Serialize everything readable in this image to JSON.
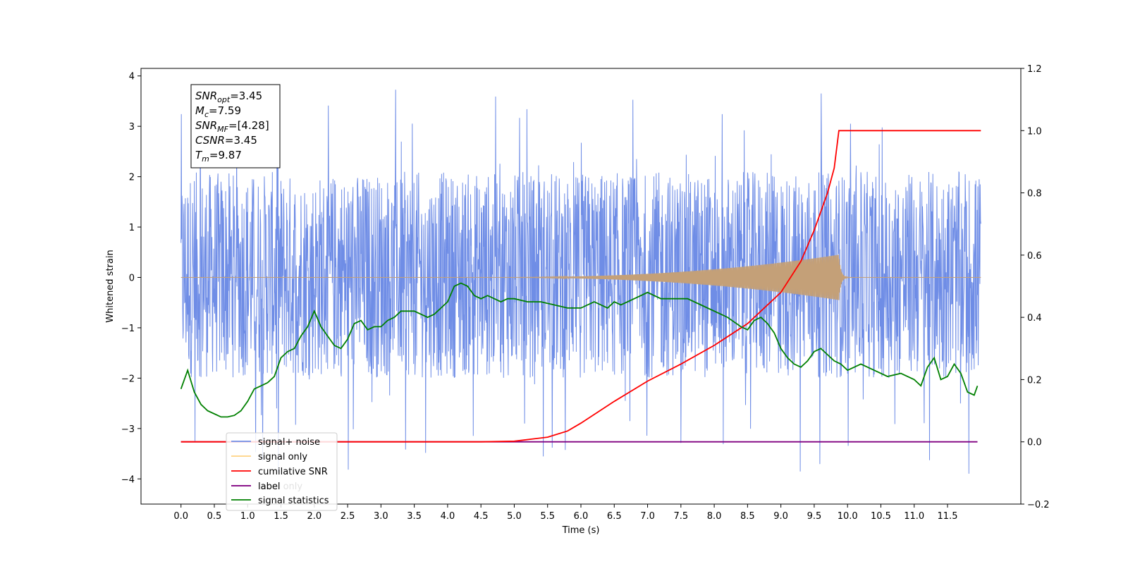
{
  "chart_data": {
    "type": "line",
    "xlabel": "Time (s)",
    "ylabel": "Whitened strain",
    "xlim": [
      -0.6,
      12.6
    ],
    "ylim": [
      -4.5,
      4.15
    ],
    "y2lim": [
      -0.2,
      1.2
    ],
    "x_ticks": [
      "0.0",
      "0.5",
      "1.0",
      "1.5",
      "2.0",
      "2.5",
      "3.0",
      "3.5",
      "4.0",
      "4.5",
      "5.0",
      "5.5",
      "6.0",
      "6.5",
      "7.0",
      "7.5",
      "8.0",
      "8.5",
      "9.0",
      "9.5",
      "10.0",
      "10.5",
      "11.0",
      "11.5"
    ],
    "y_ticks": [
      "4",
      "3",
      "2",
      "1",
      "0",
      "−1",
      "−2",
      "−3",
      "−4"
    ],
    "y2_ticks": [
      "1.2",
      "1.0",
      "0.8",
      "0.6",
      "0.4",
      "0.2",
      "0.0",
      "−0.2"
    ],
    "grid": false,
    "legend_position": "lower-left",
    "legend": [
      {
        "label": "signal+ noise",
        "color": "#6f8de6"
      },
      {
        "label": "signal only",
        "color": "#ffbf4f"
      },
      {
        "label": "cumilative SNR",
        "color": "#ff0000"
      },
      {
        "label": "label",
        "color": "#800080"
      },
      {
        "label": "label only",
        "color": "#800080"
      },
      {
        "label": "signal statistics",
        "color": "#008000"
      }
    ],
    "info_box": [
      {
        "base": "SNR",
        "sub": "opt",
        "value": "=3.45"
      },
      {
        "base": "M",
        "sub": "c",
        "value": "=7.59"
      },
      {
        "base": "SNR",
        "sub": "MF",
        "value": "=[4.28]"
      },
      {
        "base": "CSNR",
        "sub": "",
        "value": "=3.45"
      },
      {
        "base": "T",
        "sub": "m",
        "value": "=9.87"
      }
    ],
    "series": [
      {
        "name": "signal+ noise",
        "axis": "left",
        "color": "#6f8de6",
        "x_range": [
          0.0,
          12.0
        ],
        "envelope": {
          "typical_band": [
            -2.0,
            2.1
          ],
          "extremes": [
            -3.95,
            3.78
          ]
        }
      },
      {
        "name": "signal only",
        "axis": "left",
        "color": "#c4a078",
        "chirp": {
          "start_s": 4.5,
          "end_s": 9.87,
          "peak_amplitude": 0.45,
          "ringdown_after_s": 9.87
        }
      },
      {
        "name": "cumilative SNR",
        "axis": "right",
        "color": "#ff0000",
        "x": [
          0.0,
          4.5,
          5.0,
          5.5,
          5.8,
          6.0,
          6.5,
          7.0,
          7.5,
          8.0,
          8.5,
          9.0,
          9.3,
          9.5,
          9.7,
          9.8,
          9.87,
          12.0
        ],
        "y": [
          0.0,
          0.0,
          0.002,
          0.015,
          0.035,
          0.06,
          0.13,
          0.195,
          0.25,
          0.31,
          0.38,
          0.48,
          0.58,
          0.68,
          0.8,
          0.88,
          1.0,
          1.0
        ]
      },
      {
        "name": "label",
        "axis": "right",
        "color": "#800080",
        "x": [
          0.0,
          11.95
        ],
        "y": [
          0.0,
          0.0
        ]
      },
      {
        "name": "signal statistics",
        "axis": "right",
        "color": "#008000",
        "x": [
          0.0,
          0.1,
          0.2,
          0.3,
          0.4,
          0.5,
          0.6,
          0.7,
          0.8,
          0.9,
          1.0,
          1.1,
          1.2,
          1.3,
          1.4,
          1.5,
          1.6,
          1.7,
          1.8,
          1.9,
          2.0,
          2.1,
          2.2,
          2.3,
          2.4,
          2.5,
          2.6,
          2.7,
          2.8,
          2.9,
          3.0,
          3.1,
          3.2,
          3.3,
          3.4,
          3.5,
          3.6,
          3.7,
          3.8,
          3.9,
          4.0,
          4.1,
          4.2,
          4.3,
          4.4,
          4.5,
          4.6,
          4.7,
          4.8,
          4.9,
          5.0,
          5.2,
          5.4,
          5.6,
          5.8,
          6.0,
          6.2,
          6.4,
          6.5,
          6.6,
          6.8,
          7.0,
          7.2,
          7.4,
          7.6,
          7.8,
          8.0,
          8.2,
          8.4,
          8.5,
          8.6,
          8.7,
          8.8,
          8.9,
          9.0,
          9.1,
          9.2,
          9.3,
          9.4,
          9.5,
          9.6,
          9.7,
          9.8,
          9.9,
          10.0,
          10.2,
          10.4,
          10.6,
          10.8,
          11.0,
          11.1,
          11.2,
          11.3,
          11.4,
          11.5,
          11.6,
          11.7,
          11.8,
          11.9,
          11.95
        ],
        "y": [
          0.17,
          0.23,
          0.16,
          0.12,
          0.1,
          0.09,
          0.08,
          0.08,
          0.085,
          0.1,
          0.13,
          0.17,
          0.18,
          0.19,
          0.21,
          0.27,
          0.29,
          0.3,
          0.34,
          0.37,
          0.42,
          0.37,
          0.34,
          0.31,
          0.3,
          0.33,
          0.38,
          0.39,
          0.36,
          0.37,
          0.37,
          0.39,
          0.4,
          0.42,
          0.42,
          0.42,
          0.41,
          0.4,
          0.41,
          0.43,
          0.45,
          0.5,
          0.51,
          0.5,
          0.47,
          0.46,
          0.47,
          0.46,
          0.45,
          0.46,
          0.46,
          0.45,
          0.45,
          0.44,
          0.43,
          0.43,
          0.45,
          0.43,
          0.45,
          0.44,
          0.46,
          0.48,
          0.46,
          0.46,
          0.46,
          0.44,
          0.42,
          0.4,
          0.37,
          0.36,
          0.39,
          0.4,
          0.38,
          0.35,
          0.3,
          0.27,
          0.25,
          0.24,
          0.26,
          0.29,
          0.3,
          0.28,
          0.26,
          0.25,
          0.23,
          0.25,
          0.23,
          0.21,
          0.22,
          0.2,
          0.18,
          0.24,
          0.27,
          0.2,
          0.21,
          0.25,
          0.22,
          0.16,
          0.15,
          0.18
        ]
      }
    ]
  }
}
